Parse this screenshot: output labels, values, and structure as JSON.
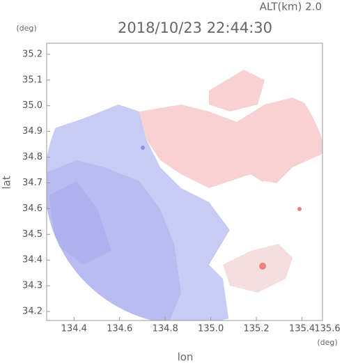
{
  "chart_data": {
    "type": "radar-field",
    "title": "2018/10/23 22:44:30",
    "subtitle": "ALT(km) 2.0",
    "x_label": "lon",
    "x_unit": "(deg)",
    "y_label": "lat",
    "y_unit": "(deg)",
    "xlim": [
      134.28,
      135.49
    ],
    "xticks": [
      134.4,
      134.6,
      134.8,
      {
        "value": 135,
        "label": "135.0"
      },
      135.2,
      135.4,
      135.6
    ],
    "ylim": [
      34.165,
      35.243
    ],
    "yticks": [
      34.2,
      34.3,
      34.4,
      34.5,
      34.6,
      34.7,
      34.8,
      34.9,
      {
        "value": 35,
        "label": "35.0"
      },
      35.1,
      35.2
    ]
  }
}
